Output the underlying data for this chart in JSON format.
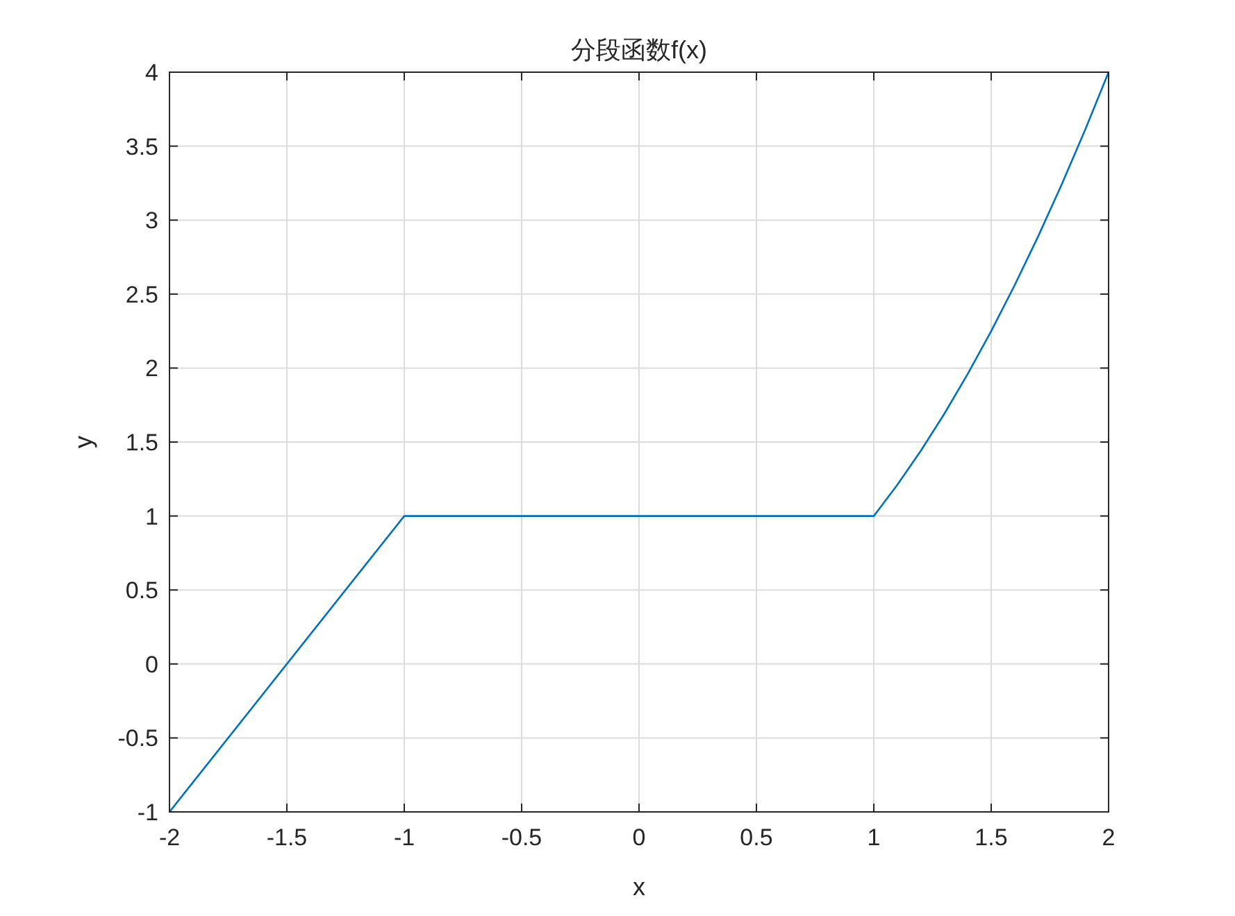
{
  "chart_data": {
    "type": "line",
    "title": "分段函数f(x)",
    "xlabel": "x",
    "ylabel": "y",
    "series": [
      {
        "color": "#0072bd",
        "x": [
          -2,
          -1,
          1,
          1.1,
          1.2,
          1.3,
          1.4,
          1.5,
          1.6,
          1.7,
          1.8,
          1.9,
          2
        ],
        "values": [
          -1,
          1,
          1,
          1.21,
          1.44,
          1.69,
          1.96,
          2.25,
          2.56,
          2.89,
          3.24,
          3.61,
          4
        ]
      }
    ],
    "xlim": [
      -2,
      2
    ],
    "xticks": [
      -2,
      -1.5,
      -1,
      -0.5,
      0,
      0.5,
      1,
      1.5,
      2
    ],
    "ylim": [
      -1,
      4
    ],
    "yticks": [
      -1,
      -0.5,
      0,
      0.5,
      1,
      1.5,
      2,
      2.5,
      3,
      3.5,
      4
    ],
    "grid": true,
    "marker": "none",
    "line_style": "solid"
  }
}
